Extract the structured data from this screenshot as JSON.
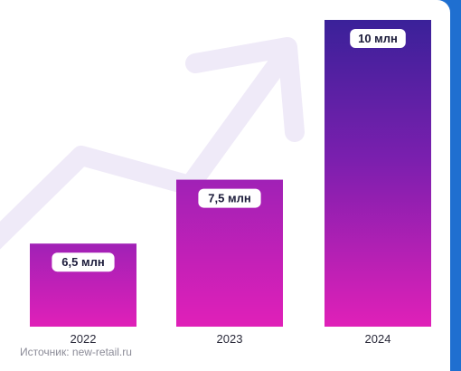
{
  "chart_data": {
    "type": "bar",
    "categories": [
      "2022",
      "2023",
      "2024"
    ],
    "values": [
      6.5,
      7.5,
      10
    ],
    "value_labels": [
      "6,5 млн",
      "7,5 млн",
      "10 млн"
    ],
    "ylim": [
      5.2,
      10
    ],
    "grid": false,
    "legend": "none",
    "colors": {
      "bar_top_light": "#a021b6",
      "bar_top_dark": "#3a2199",
      "bar_bottom": "#e020b8",
      "arrow": "#efeaf8"
    }
  },
  "source": "Источник: new-retail.ru"
}
